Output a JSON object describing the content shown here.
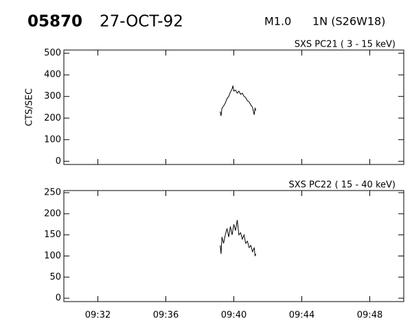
{
  "header": {
    "number": "05870",
    "date": "27-OCT-92",
    "class": "M1.0",
    "location": "1N (S26W18)"
  },
  "chart_data": [
    {
      "type": "line",
      "label": "SXS PC21  (  3 - 15 keV)",
      "y_label": "CTS/SEC",
      "xlim": [
        30,
        50
      ],
      "xticks": [
        32,
        36,
        40,
        44,
        48
      ],
      "ylim": [
        -15,
        515
      ],
      "yticks": [
        0,
        100,
        200,
        300,
        400,
        500
      ],
      "series": [
        {
          "color": "#000000",
          "x": [
            39.2,
            39.25,
            39.3,
            39.4,
            39.5,
            39.6,
            39.7,
            39.8,
            39.9,
            39.95,
            40.0,
            40.1,
            40.2,
            40.3,
            40.4,
            40.5,
            40.6,
            40.7,
            40.8,
            40.9,
            41.0,
            41.1,
            41.2,
            41.25,
            41.3
          ],
          "values": [
            230,
            210,
            245,
            255,
            270,
            290,
            300,
            320,
            335,
            350,
            325,
            330,
            315,
            325,
            310,
            315,
            300,
            295,
            280,
            275,
            260,
            250,
            215,
            245,
            235
          ]
        }
      ]
    },
    {
      "type": "line",
      "label": "SXS PC22  ( 15 - 40 keV)",
      "xlim": [
        30,
        50
      ],
      "xticks": [
        {
          "value": 32,
          "label": "09:32"
        },
        {
          "value": 36,
          "label": "09:36"
        },
        {
          "value": 40,
          "label": "09:40"
        },
        {
          "value": 44,
          "label": "09:44"
        },
        {
          "value": 48,
          "label": "09:48"
        }
      ],
      "ylim": [
        -8,
        255
      ],
      "yticks": [
        0,
        50,
        100,
        150,
        200,
        250
      ],
      "series": [
        {
          "color": "#000000",
          "x": [
            39.2,
            39.25,
            39.3,
            39.4,
            39.5,
            39.6,
            39.7,
            39.8,
            39.9,
            40.0,
            40.1,
            40.2,
            40.3,
            40.4,
            40.5,
            40.6,
            40.7,
            40.8,
            40.9,
            41.0,
            41.1,
            41.2,
            41.25,
            41.3
          ],
          "values": [
            125,
            105,
            145,
            130,
            150,
            165,
            145,
            170,
            150,
            175,
            160,
            185,
            150,
            155,
            140,
            150,
            130,
            135,
            120,
            125,
            110,
            120,
            100,
            105
          ]
        }
      ]
    }
  ]
}
